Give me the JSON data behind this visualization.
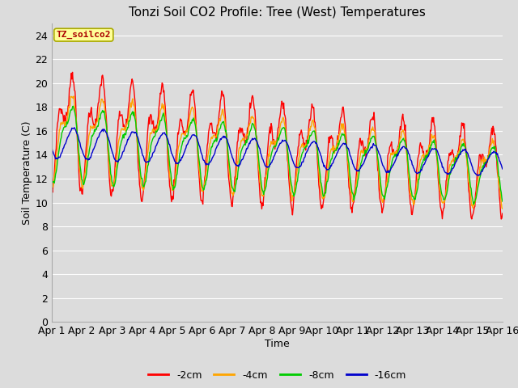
{
  "title": "Tonzi Soil CO2 Profile: Tree (West) Temperatures",
  "xlabel": "Time",
  "ylabel": "Soil Temperature (C)",
  "annotation": "TZ_soilco2",
  "ylim": [
    0,
    25
  ],
  "yticks": [
    0,
    2,
    4,
    6,
    8,
    10,
    12,
    14,
    16,
    18,
    20,
    22,
    24
  ],
  "xtick_labels": [
    "Apr 1",
    "Apr 2",
    "Apr 3",
    "Apr 4",
    "Apr 5",
    "Apr 6",
    "Apr 7",
    "Apr 8",
    "Apr 9",
    "Apr 10",
    "Apr 11",
    "Apr 12",
    "Apr 13",
    "Apr 14",
    "Apr 15",
    "Apr 16"
  ],
  "line_colors": [
    "#ff0000",
    "#ffa500",
    "#00cc00",
    "#0000cc"
  ],
  "line_labels": [
    "-2cm",
    "-4cm",
    "-8cm",
    "-16cm"
  ],
  "bg_color": "#dcdcdc",
  "title_fontsize": 11,
  "annot_facecolor": "#ffff99",
  "annot_edgecolor": "#aaaa00",
  "annot_textcolor": "#aa0000",
  "grid_color": "#ffffff",
  "spine_color": "#aaaaaa"
}
